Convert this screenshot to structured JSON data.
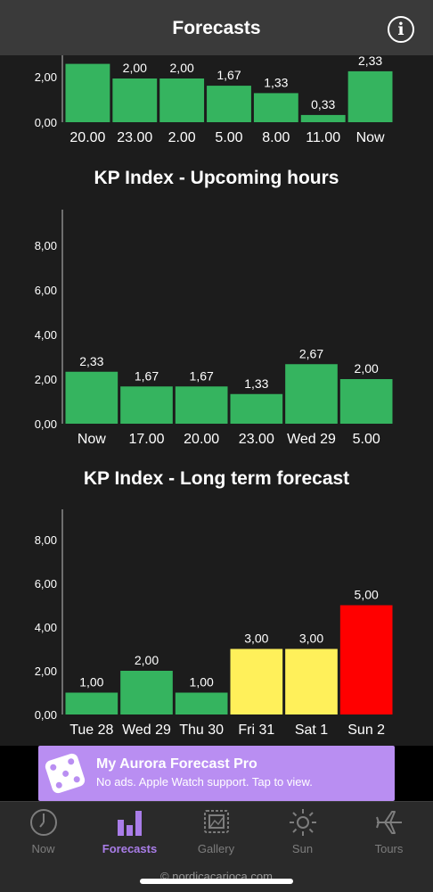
{
  "header": {
    "title": "Forecasts",
    "info_glyph": "i"
  },
  "charts": {
    "previous": {
      "title": ""
    },
    "upcoming": {
      "title": "KP Index - Upcoming hours"
    },
    "longterm": {
      "title": "KP Index - Long term forecast"
    }
  },
  "chart_data": [
    {
      "type": "bar",
      "title": "",
      "categories": [
        "20.00",
        "23.00",
        "2.00",
        "5.00",
        "8.00",
        "11.00",
        "Now"
      ],
      "values": [
        2.67,
        2.0,
        2.0,
        1.67,
        1.33,
        0.33,
        2.33
      ],
      "data_labels": [
        "",
        "2,00",
        "2,00",
        "1,67",
        "1,33",
        "0,33",
        "2,33"
      ],
      "yticks": [
        "0,00",
        "2,00"
      ],
      "ylim": [
        0,
        2.8
      ],
      "bar_colors": [
        "#35b45f"
      ],
      "grid": false
    },
    {
      "type": "bar",
      "title": "KP Index - Upcoming hours",
      "categories": [
        "Now",
        "17.00",
        "20.00",
        "23.00",
        "Wed 29",
        "5.00"
      ],
      "values": [
        2.33,
        1.67,
        1.67,
        1.33,
        2.67,
        2.0
      ],
      "data_labels": [
        "2,33",
        "1,67",
        "1,67",
        "1,33",
        "2,67",
        "2,00"
      ],
      "yticks": [
        "0,00",
        "2,00",
        "4,00",
        "6,00",
        "8,00"
      ],
      "ylim": [
        0,
        9
      ],
      "bar_colors": [
        "#35b45f"
      ],
      "grid": false
    },
    {
      "type": "bar",
      "title": "KP Index - Long term forecast",
      "categories": [
        "Tue 28",
        "Wed 29",
        "Thu 30",
        "Fri 31",
        "Sat 1",
        "Sun 2"
      ],
      "values": [
        1.0,
        2.0,
        1.0,
        3.0,
        3.0,
        5.0
      ],
      "data_labels": [
        "1,00",
        "2,00",
        "1,00",
        "3,00",
        "3,00",
        "5,00"
      ],
      "yticks": [
        "0,00",
        "2,00",
        "4,00",
        "6,00",
        "8,00"
      ],
      "ylim": [
        0,
        9
      ],
      "bar_colors": [
        "#35b45f",
        "#35b45f",
        "#35b45f",
        "#fff05a",
        "#fff05a",
        "#ff0000"
      ],
      "grid": false
    }
  ],
  "banner": {
    "title": "My Aurora Forecast Pro",
    "subtitle": "No ads. Apple Watch support. Tap to view.",
    "background": "#b98ef2",
    "icon": "dice-icon"
  },
  "tabs": [
    {
      "label": "Now",
      "icon": "clock-icon",
      "active": false
    },
    {
      "label": "Forecasts",
      "icon": "bar-chart-icon",
      "active": true
    },
    {
      "label": "Gallery",
      "icon": "gallery-icon",
      "active": false
    },
    {
      "label": "Sun",
      "icon": "sun-icon",
      "active": false
    },
    {
      "label": "Tours",
      "icon": "airplane-icon",
      "active": false
    }
  ],
  "footer": {
    "credit": "© nordicacarioca.com"
  },
  "colors": {
    "accent": "#a97de8",
    "bar_green": "#35b45f",
    "bar_yellow": "#fff05a",
    "bar_red": "#ff0000",
    "nav_bg": "#3a3a3a",
    "page_bg": "#1c1c1c"
  }
}
